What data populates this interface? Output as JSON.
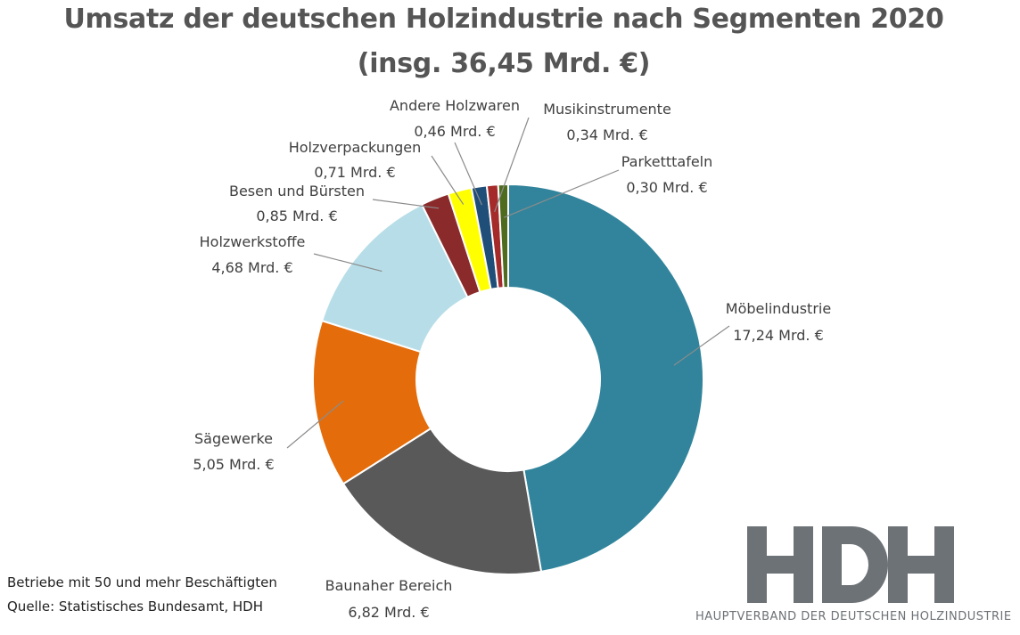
{
  "title_line1": "Umsatz der deutschen Holzindustrie nach Segmenten 2020",
  "title_line2": "(insg. 36,45 Mrd. €)",
  "chart_data": {
    "type": "pie",
    "title": "Umsatz der deutschen Holzindustrie nach Segmenten 2020 (insg. 36,45 Mrd. €)",
    "unit": "Mrd. €",
    "total": 36.45,
    "slices": [
      {
        "name": "Möbelindustrie",
        "value": 17.24,
        "value_label": "17,24 Mrd. €",
        "color": "#31849B"
      },
      {
        "name": "Baunaher  Bereich",
        "value": 6.82,
        "value_label": "6,82 Mrd. €",
        "color": "#595959"
      },
      {
        "name": "Sägewerke",
        "value": 5.05,
        "value_label": "5,05 Mrd. €",
        "color": "#E46C0A"
      },
      {
        "name": "Holzwerkstoffe",
        "value": 4.68,
        "value_label": "4,68 Mrd. €",
        "color": "#B7DEE8"
      },
      {
        "name": "Besen und Bürsten",
        "value": 0.85,
        "value_label": "0,85 Mrd. €",
        "color": "#8B2A2A"
      },
      {
        "name": "Holzverpackungen",
        "value": 0.71,
        "value_label": "0,71 Mrd. €",
        "color": "#FFFF00"
      },
      {
        "name": "Andere Holzwaren",
        "value": 0.46,
        "value_label": "0,46 Mrd. €",
        "color": "#1F4E79"
      },
      {
        "name": "Musikinstrumente",
        "value": 0.34,
        "value_label": "0,34 Mrd. €",
        "color": "#A52A2A"
      },
      {
        "name": "Parketttafeln",
        "value": 0.3,
        "value_label": "0,30 Mrd. €",
        "color": "#4E6B1E"
      }
    ]
  },
  "footnote_line1": "Betriebe mit 50 und mehr Beschäftigten",
  "footnote_line2": "Quelle: Statistisches Bundesamt, HDH",
  "logo": {
    "mark": "HDH",
    "subtitle": "HAUPTVERBAND DER DEUTSCHEN HOLZINDUSTRIE",
    "color": "#6D7276"
  }
}
